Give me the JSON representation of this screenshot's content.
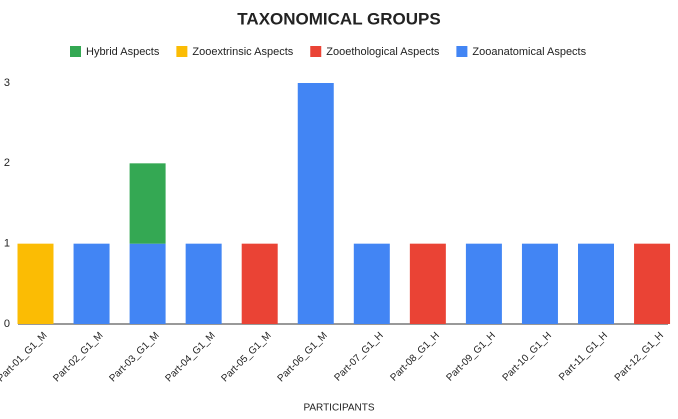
{
  "chart_data": {
    "type": "bar",
    "stacked": true,
    "title": "TAXONOMICAL GROUPS",
    "x_label": "PARTICIPANTS",
    "categories": [
      "Part-01_G1_M",
      "Part-02_G1_M",
      "Part-03_G1_M",
      "Part-04_G1_M",
      "Part-05_G1_M",
      "Part-06_G1_M",
      "Part-07_G1_H",
      "Part-08_G1_H",
      "Part-09_G1_H",
      "Part-10_G1_H",
      "Part-11_G1_H",
      "Part-12_G1_H"
    ],
    "series": [
      {
        "name": "Hybrid Aspects",
        "color": "#34a853",
        "values": [
          0,
          0,
          1,
          0,
          0,
          0,
          0,
          0,
          0,
          0,
          0,
          0
        ]
      },
      {
        "name": "Zooextrinsic Aspects",
        "color": "#fbbc04",
        "values": [
          1,
          0,
          0,
          0,
          0,
          0,
          0,
          0,
          0,
          0,
          0,
          0
        ]
      },
      {
        "name": "Zooethological Aspects",
        "color": "#ea4335",
        "values": [
          0,
          0,
          0,
          0,
          1,
          0,
          0,
          1,
          0,
          0,
          0,
          1
        ]
      },
      {
        "name": "Zooanatomical Aspects",
        "color": "#4285f4",
        "values": [
          0,
          1,
          1,
          1,
          0,
          3,
          1,
          0,
          1,
          1,
          1,
          0
        ]
      }
    ],
    "ylim": [
      0,
      3
    ],
    "yticks": [
      0,
      1,
      2,
      3
    ],
    "grid": false,
    "legend": "top"
  }
}
